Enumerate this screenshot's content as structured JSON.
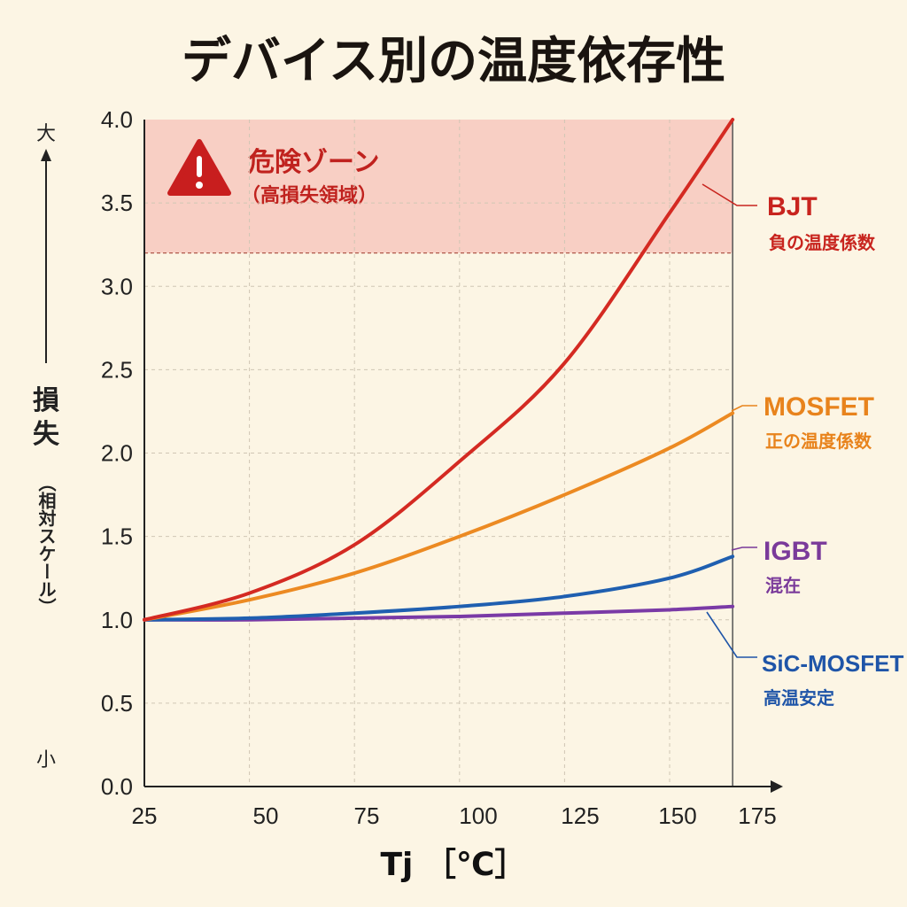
{
  "chart_data": {
    "type": "line",
    "title": "デバイス別の温度依存性",
    "xlabel": "Tj ［℃］",
    "ylabel": "損失",
    "ylabel_sub": "（相対スケール）",
    "y_high_label": "大",
    "y_low_label": "小",
    "xlim": [
      25,
      175
    ],
    "ylim": [
      0,
      4.0
    ],
    "x_end": 165,
    "grid": true,
    "xticks": [
      25,
      50,
      75,
      100,
      125,
      150,
      175
    ],
    "xtick_labels": [
      "25",
      "50",
      "75",
      "100",
      "125",
      "150",
      "175"
    ],
    "yticks": [
      0,
      0.5,
      1.0,
      1.5,
      2.0,
      2.5,
      3.0,
      3.5,
      4.0
    ],
    "ytick_labels": [
      "0.0",
      "0.5",
      "1.0",
      "1.5",
      "2.0",
      "2.5",
      "3.0",
      "3.5",
      "4.0"
    ],
    "danger_zone": {
      "from": 3.2,
      "to": 4.0,
      "title": "危険ゾーン",
      "subtitle": "（高損失領域）",
      "color": "#f8cfc4"
    },
    "x": [
      25,
      50,
      75,
      100,
      125,
      150,
      165
    ],
    "series": [
      {
        "name": "BJT",
        "note": "負の温度係数",
        "color": "#d42a22",
        "label_color": "#c8241e",
        "values": [
          1.0,
          1.16,
          1.45,
          1.95,
          2.54,
          3.44,
          4.0
        ]
      },
      {
        "name": "MOSFET",
        "note": "正の温度係数",
        "color": "#ec8a22",
        "label_color": "#e8831c",
        "values": [
          1.0,
          1.12,
          1.28,
          1.5,
          1.75,
          2.03,
          2.24
        ]
      },
      {
        "name": "IGBT",
        "note": "混在",
        "color": "#1f5fb0",
        "label_color": "#7a3a9a",
        "values": [
          1.0,
          1.01,
          1.04,
          1.08,
          1.14,
          1.25,
          1.38
        ]
      },
      {
        "name": "SiC-MOSFET",
        "note": "高温安定",
        "color": "#7a3aa6",
        "label_color": "#1f55a8",
        "values": [
          1.0,
          1.0,
          1.01,
          1.02,
          1.04,
          1.06,
          1.08
        ]
      }
    ]
  }
}
